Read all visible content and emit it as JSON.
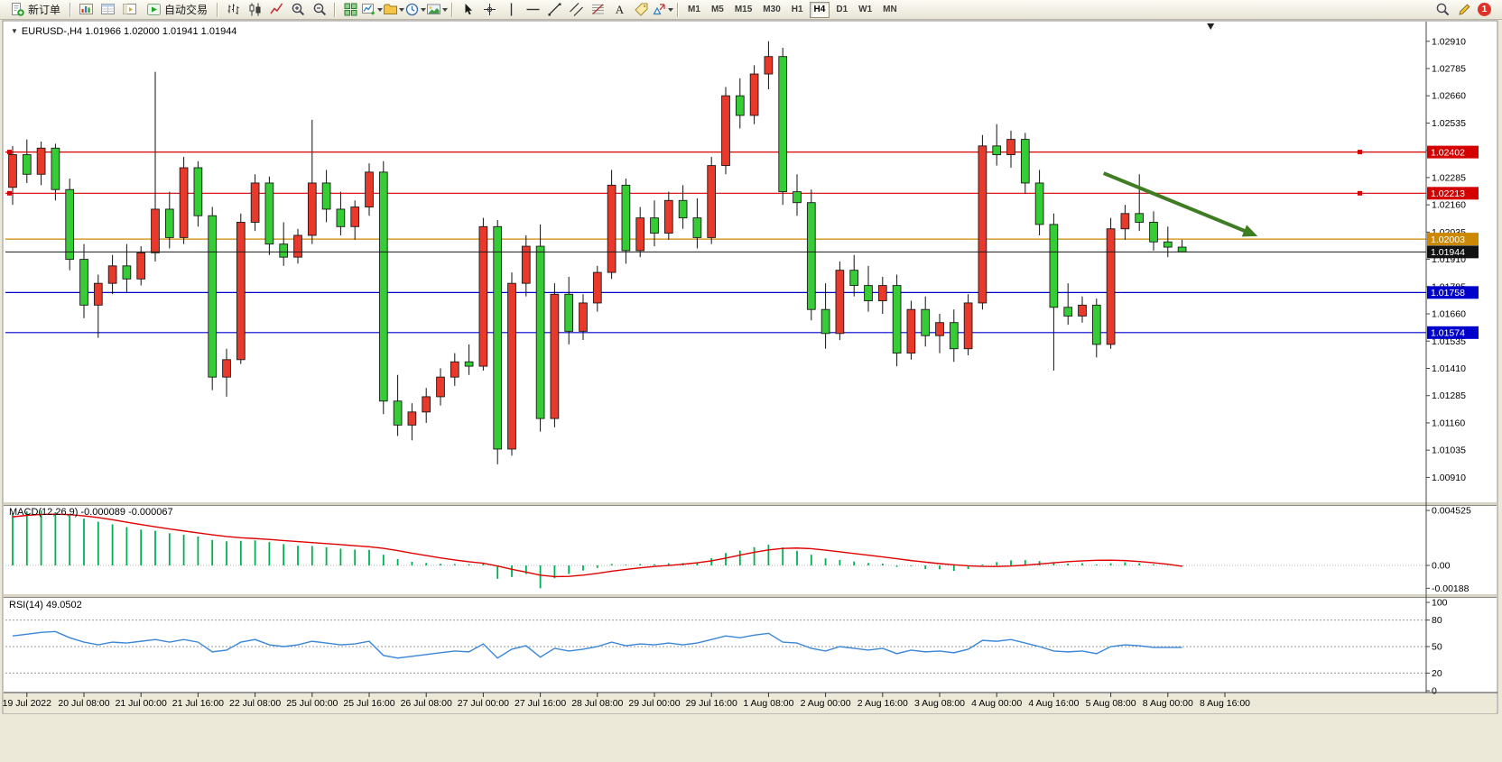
{
  "toolbar": {
    "new_order_label": "新订单",
    "auto_trading_label": "自动交易",
    "left_icons": [
      {
        "name": "market-watch-icon"
      },
      {
        "name": "data-window-icon"
      },
      {
        "name": "navigator-icon"
      }
    ],
    "chart_type_icons": [
      {
        "name": "bar-chart-icon"
      },
      {
        "name": "candlestick-icon"
      },
      {
        "name": "line-chart-icon"
      }
    ],
    "zoom_icons": [
      {
        "name": "zoom-in-icon"
      },
      {
        "name": "zoom-out-icon"
      }
    ],
    "window_icons": [
      {
        "name": "tile-windows-icon"
      },
      {
        "name": "new-chart-icon",
        "dropdown": true
      },
      {
        "name": "profiles-icon",
        "dropdown": true
      },
      {
        "name": "clock-icon",
        "dropdown": true
      },
      {
        "name": "snapshot-icon",
        "dropdown": true
      }
    ],
    "drawing_icons": [
      {
        "name": "cursor-icon"
      },
      {
        "name": "crosshair-icon"
      },
      {
        "name": "vertical-line-icon"
      },
      {
        "name": "horizontal-line-icon"
      },
      {
        "name": "trendline-icon"
      },
      {
        "name": "channel-icon"
      },
      {
        "name": "fibonacci-icon"
      },
      {
        "name": "text-icon"
      },
      {
        "name": "label-icon"
      },
      {
        "name": "shapes-icon",
        "dropdown": true
      }
    ],
    "timeframes": [
      "M1",
      "M5",
      "M15",
      "M30",
      "H1",
      "H4",
      "D1",
      "W1",
      "MN"
    ],
    "active_timeframe": "H4",
    "right_icons": [
      {
        "name": "search-icon"
      },
      {
        "name": "pencil-icon"
      }
    ],
    "notification_badge": "1"
  },
  "chart_data": {
    "type": "candlestick",
    "symbol": "EURUSD-",
    "timeframe": "H4",
    "header": "EURUSD-,H4  1.01966 1.02000 1.01941 1.01944",
    "colors": {
      "bull": "#e8392b",
      "bear": "#35cc35",
      "wick": "#111111",
      "hline_red": "#d40000",
      "hline_orange": "#cc8800",
      "hline_blue": "#0000cc",
      "current": "#1a1a1a",
      "arrow": "#3e7d22",
      "macd_hist": "#00b050",
      "macd_signal": "#e00000",
      "rsi_line": "#3a87d8"
    },
    "price_view": [
      1.008,
      1.03
    ],
    "price_axis_ticks": [
      "1.02910",
      "1.02785",
      "1.02660",
      "1.02535",
      "1.02410",
      "1.02285",
      "1.02160",
      "1.02035",
      "1.01910",
      "1.01785",
      "1.01660",
      "1.01535",
      "1.01410",
      "1.01285",
      "1.01160",
      "1.01035",
      "1.00910"
    ],
    "hlines": [
      {
        "price": 1.02402,
        "label": "1.02402",
        "color": "#d40000",
        "handles": true
      },
      {
        "price": 1.02213,
        "label": "1.02213",
        "color": "#d40000",
        "handles": true
      },
      {
        "price": 1.02003,
        "label": "1.02003",
        "color": "#cc8800",
        "handles": false
      },
      {
        "price": 1.01758,
        "label": "1.01758",
        "color": "#0000cc",
        "handles": false
      },
      {
        "price": 1.01574,
        "label": "1.01574",
        "color": "#0000cc",
        "handles": false
      }
    ],
    "current_price": {
      "value": 1.01944,
      "label": "1.01944"
    },
    "shift_marker_i": 84,
    "arrow_annotation": {
      "from": {
        "i": 76.5,
        "price": 1.02305
      },
      "to": {
        "i": 87,
        "price": 1.02024
      }
    },
    "candles": [
      [
        1.0224,
        1.0243,
        1.0216,
        1.0239
      ],
      [
        1.0239,
        1.0246,
        1.0226,
        1.023
      ],
      [
        1.023,
        1.0245,
        1.0225,
        1.0242
      ],
      [
        1.0242,
        1.0244,
        1.0218,
        1.0223
      ],
      [
        1.0223,
        1.0228,
        1.0186,
        1.0191
      ],
      [
        1.0191,
        1.0198,
        1.0164,
        1.017
      ],
      [
        1.017,
        1.0184,
        1.0155,
        1.018
      ],
      [
        1.018,
        1.0193,
        1.0175,
        1.0188
      ],
      [
        1.0188,
        1.0198,
        1.0176,
        1.0182
      ],
      [
        1.0182,
        1.0197,
        1.0179,
        1.0194
      ],
      [
        1.0194,
        1.0277,
        1.019,
        1.0214
      ],
      [
        1.0214,
        1.0222,
        1.0196,
        1.0201
      ],
      [
        1.0201,
        1.0238,
        1.0198,
        1.0233
      ],
      [
        1.0233,
        1.0236,
        1.0206,
        1.0211
      ],
      [
        1.0211,
        1.0215,
        1.0131,
        1.0137
      ],
      [
        1.0137,
        1.015,
        1.0128,
        1.0145
      ],
      [
        1.0145,
        1.0212,
        1.0143,
        1.0208
      ],
      [
        1.0208,
        1.023,
        1.0204,
        1.0226
      ],
      [
        1.0226,
        1.0229,
        1.0193,
        1.0198
      ],
      [
        1.0198,
        1.0208,
        1.0188,
        1.0192
      ],
      [
        1.0192,
        1.0205,
        1.0189,
        1.0202
      ],
      [
        1.0202,
        1.0255,
        1.0198,
        1.0226
      ],
      [
        1.0226,
        1.0232,
        1.0208,
        1.0214
      ],
      [
        1.0214,
        1.0222,
        1.0202,
        1.0206
      ],
      [
        1.0206,
        1.0218,
        1.02,
        1.0215
      ],
      [
        1.0215,
        1.0235,
        1.0211,
        1.0231
      ],
      [
        1.0231,
        1.0236,
        1.012,
        1.0126
      ],
      [
        1.0126,
        1.0138,
        1.011,
        1.0115
      ],
      [
        1.0115,
        1.0125,
        1.0108,
        1.0121
      ],
      [
        1.0121,
        1.0132,
        1.0116,
        1.0128
      ],
      [
        1.0128,
        1.0141,
        1.0124,
        1.0137
      ],
      [
        1.0137,
        1.0148,
        1.0133,
        1.0144
      ],
      [
        1.0144,
        1.0152,
        1.0138,
        1.0142
      ],
      [
        1.0142,
        1.021,
        1.014,
        1.0206
      ],
      [
        1.0206,
        1.0209,
        1.0097,
        1.0104
      ],
      [
        1.0104,
        1.0185,
        1.0101,
        1.018
      ],
      [
        1.018,
        1.0202,
        1.0174,
        1.0197
      ],
      [
        1.0197,
        1.0207,
        1.0112,
        1.0118
      ],
      [
        1.0118,
        1.018,
        1.0114,
        1.0175
      ],
      [
        1.0175,
        1.0183,
        1.0152,
        1.0158
      ],
      [
        1.0158,
        1.0175,
        1.0154,
        1.0171
      ],
      [
        1.0171,
        1.0188,
        1.0167,
        1.0185
      ],
      [
        1.0185,
        1.0232,
        1.0182,
        1.0225
      ],
      [
        1.0225,
        1.0228,
        1.0189,
        1.0195
      ],
      [
        1.0195,
        1.0215,
        1.0192,
        1.021
      ],
      [
        1.021,
        1.0218,
        1.0197,
        1.0203
      ],
      [
        1.0203,
        1.0222,
        1.02,
        1.0218
      ],
      [
        1.0218,
        1.0225,
        1.0205,
        1.021
      ],
      [
        1.021,
        1.0219,
        1.0196,
        1.0201
      ],
      [
        1.0201,
        1.0238,
        1.0198,
        1.0234
      ],
      [
        1.0234,
        1.027,
        1.023,
        1.0266
      ],
      [
        1.0266,
        1.0274,
        1.0251,
        1.0257
      ],
      [
        1.0257,
        1.028,
        1.0253,
        1.0276
      ],
      [
        1.0276,
        1.0291,
        1.0269,
        1.0284
      ],
      [
        1.0284,
        1.0288,
        1.0216,
        1.0222
      ],
      [
        1.0222,
        1.023,
        1.0211,
        1.0217
      ],
      [
        1.0217,
        1.0223,
        1.0163,
        1.0168
      ],
      [
        1.0168,
        1.018,
        1.015,
        1.0157
      ],
      [
        1.0157,
        1.019,
        1.0154,
        1.0186
      ],
      [
        1.0186,
        1.0193,
        1.0174,
        1.0179
      ],
      [
        1.0179,
        1.0188,
        1.0167,
        1.0172
      ],
      [
        1.0172,
        1.0183,
        1.0166,
        1.0179
      ],
      [
        1.0179,
        1.0184,
        1.0142,
        1.0148
      ],
      [
        1.0148,
        1.0172,
        1.0145,
        1.0168
      ],
      [
        1.0168,
        1.0174,
        1.0151,
        1.0156
      ],
      [
        1.0156,
        1.0166,
        1.0148,
        1.0162
      ],
      [
        1.0162,
        1.0168,
        1.0144,
        1.015
      ],
      [
        1.015,
        1.0175,
        1.0147,
        1.0171
      ],
      [
        1.0171,
        1.0248,
        1.0168,
        1.0243
      ],
      [
        1.0243,
        1.0253,
        1.0234,
        1.0239
      ],
      [
        1.0239,
        1.025,
        1.0233,
        1.0246
      ],
      [
        1.0246,
        1.0249,
        1.0221,
        1.0226
      ],
      [
        1.0226,
        1.0232,
        1.0202,
        1.0207
      ],
      [
        1.0207,
        1.0212,
        1.014,
        1.0169
      ],
      [
        1.0169,
        1.018,
        1.0161,
        1.0165
      ],
      [
        1.0165,
        1.0174,
        1.0162,
        1.017
      ],
      [
        1.017,
        1.0173,
        1.0146,
        1.0152
      ],
      [
        1.0152,
        1.021,
        1.015,
        1.0205
      ],
      [
        1.0205,
        1.0216,
        1.02,
        1.0212
      ],
      [
        1.0212,
        1.023,
        1.0204,
        1.0208
      ],
      [
        1.0208,
        1.0213,
        1.0195,
        1.0199
      ],
      [
        1.0199,
        1.0206,
        1.0192,
        1.01966
      ],
      [
        1.01966,
        1.02,
        1.01941,
        1.01944
      ]
    ],
    "time_labels": [
      "19 Jul 2022",
      "20 Jul 08:00",
      "21 Jul 00:00",
      "21 Jul 16:00",
      "22 Jul 08:00",
      "25 Jul 00:00",
      "25 Jul 16:00",
      "26 Jul 08:00",
      "27 Jul 00:00",
      "27 Jul 16:00",
      "28 Jul 08:00",
      "29 Jul 00:00",
      "29 Jul 16:00",
      "1 Aug 08:00",
      "2 Aug 00:00",
      "2 Aug 16:00",
      "3 Aug 08:00",
      "4 Aug 00:00",
      "4 Aug 16:00",
      "5 Aug 08:00",
      "8 Aug 00:00",
      "8 Aug 16:00"
    ],
    "macd": {
      "label": "MACD(12,26,9) -0.000089 -0.000067",
      "view": [
        -0.0023,
        0.0049
      ],
      "axis": [
        "0.004525",
        "0.00",
        "-0.00188"
      ],
      "hist": [
        0.0043,
        0.00445,
        0.004525,
        0.00438,
        0.00415,
        0.00385,
        0.0036,
        0.00338,
        0.00315,
        0.00295,
        0.00285,
        0.00265,
        0.00252,
        0.00238,
        0.0021,
        0.00198,
        0.00202,
        0.00206,
        0.00192,
        0.00175,
        0.00162,
        0.0016,
        0.0015,
        0.00138,
        0.0013,
        0.00128,
        0.00088,
        0.00052,
        0.0003,
        0.0002,
        0.00014,
        0.00012,
        0.0001,
        0.00022,
        -0.0011,
        -0.00095,
        -0.0007,
        -0.00188,
        -0.00105,
        -0.0007,
        -0.00042,
        -0.0002,
        0.00012,
        6e-05,
        0.00012,
        0.0001,
        0.00018,
        0.0002,
        0.00024,
        0.0006,
        0.00102,
        0.00122,
        0.0015,
        0.0017,
        0.00148,
        0.0012,
        0.00088,
        0.00058,
        0.00045,
        0.00032,
        0.0002,
        0.00015,
        -0.00012,
        -6e-05,
        -0.0003,
        -0.00032,
        -0.00045,
        -0.0003,
        8e-05,
        0.00028,
        0.00042,
        0.00044,
        0.00036,
        0.0002,
        0.00015,
        0.00018,
        8e-05,
        0.00018,
        0.00026,
        0.00018,
        8e-05,
        -2e-05,
        -8.9e-05
      ],
      "signal": [
        0.004,
        0.00412,
        0.0042,
        0.00422,
        0.00418,
        0.00408,
        0.00394,
        0.00376,
        0.00356,
        0.00336,
        0.00318,
        0.003,
        0.00284,
        0.00268,
        0.00252,
        0.00238,
        0.00228,
        0.00221,
        0.00214,
        0.00205,
        0.00196,
        0.00188,
        0.0018,
        0.00171,
        0.00162,
        0.00154,
        0.00141,
        0.00122,
        0.00101,
        0.00081,
        0.00062,
        0.00045,
        0.0003,
        0.00018,
        -5e-05,
        -0.00032,
        -0.00055,
        -0.0008,
        -0.00092,
        -0.0009,
        -0.0008,
        -0.00065,
        -0.00048,
        -0.00033,
        -0.0002,
        -9e-05,
        0.0,
        0.0001,
        0.00022,
        0.00038,
        0.0006,
        0.00085,
        0.00108,
        0.00128,
        0.0014,
        0.00143,
        0.00138,
        0.00126,
        0.00112,
        0.00098,
        0.00084,
        0.0007,
        0.00055,
        0.0004,
        0.00027,
        0.00015,
        5e-05,
        -3e-05,
        -8e-05,
        -9e-05,
        -5e-05,
        2e-05,
        0.00012,
        0.00022,
        0.00031,
        0.00038,
        0.00042,
        0.00043,
        0.0004,
        0.00032,
        0.00022,
        0.0001,
        -6.7e-05
      ]
    },
    "rsi": {
      "label": "RSI(14) 49.0502",
      "view": [
        0,
        100
      ],
      "levels": [
        80,
        50,
        20
      ],
      "axis": [
        "100",
        "80",
        "50",
        "20",
        "0"
      ],
      "values": [
        62,
        64,
        66,
        67,
        60,
        55,
        52,
        55,
        54,
        56,
        58,
        55,
        58,
        55,
        44,
        46,
        55,
        58,
        52,
        50,
        52,
        56,
        54,
        52,
        53,
        56,
        40,
        37,
        39,
        41,
        43,
        45,
        44,
        53,
        37,
        47,
        51,
        38,
        48,
        45,
        47,
        50,
        55,
        51,
        53,
        52,
        54,
        52,
        54,
        58,
        62,
        60,
        63,
        65,
        55,
        54,
        48,
        45,
        50,
        48,
        46,
        48,
        42,
        46,
        44,
        45,
        43,
        47,
        57,
        56,
        58,
        54,
        50,
        45,
        44,
        45,
        42,
        50,
        52,
        51,
        49,
        49,
        49.05
      ]
    }
  }
}
